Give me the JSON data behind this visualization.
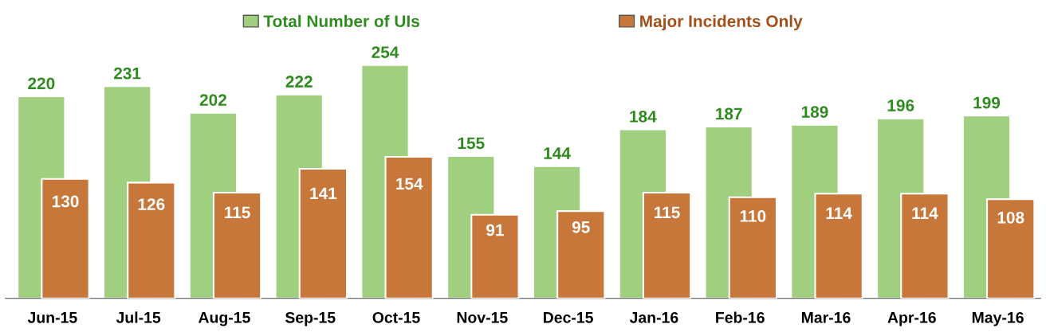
{
  "chart_data": {
    "type": "bar",
    "categories": [
      "Jun-15",
      "Jul-15",
      "Aug-15",
      "Sep-15",
      "Oct-15",
      "Nov-15",
      "Dec-15",
      "Jan-16",
      "Feb-16",
      "Mar-16",
      "Apr-16",
      "May-16"
    ],
    "series": [
      {
        "name": "Total Number of UIs",
        "color": "#9fcf7f",
        "values": [
          220,
          231,
          202,
          222,
          254,
          155,
          144,
          184,
          187,
          189,
          196,
          199
        ]
      },
      {
        "name": "Major Incidents Only",
        "color": "#c8773a",
        "values": [
          130,
          126,
          115,
          141,
          154,
          91,
          95,
          115,
          110,
          114,
          114,
          108
        ]
      }
    ],
    "data_labels": true,
    "legend": "top",
    "grid": false
  }
}
